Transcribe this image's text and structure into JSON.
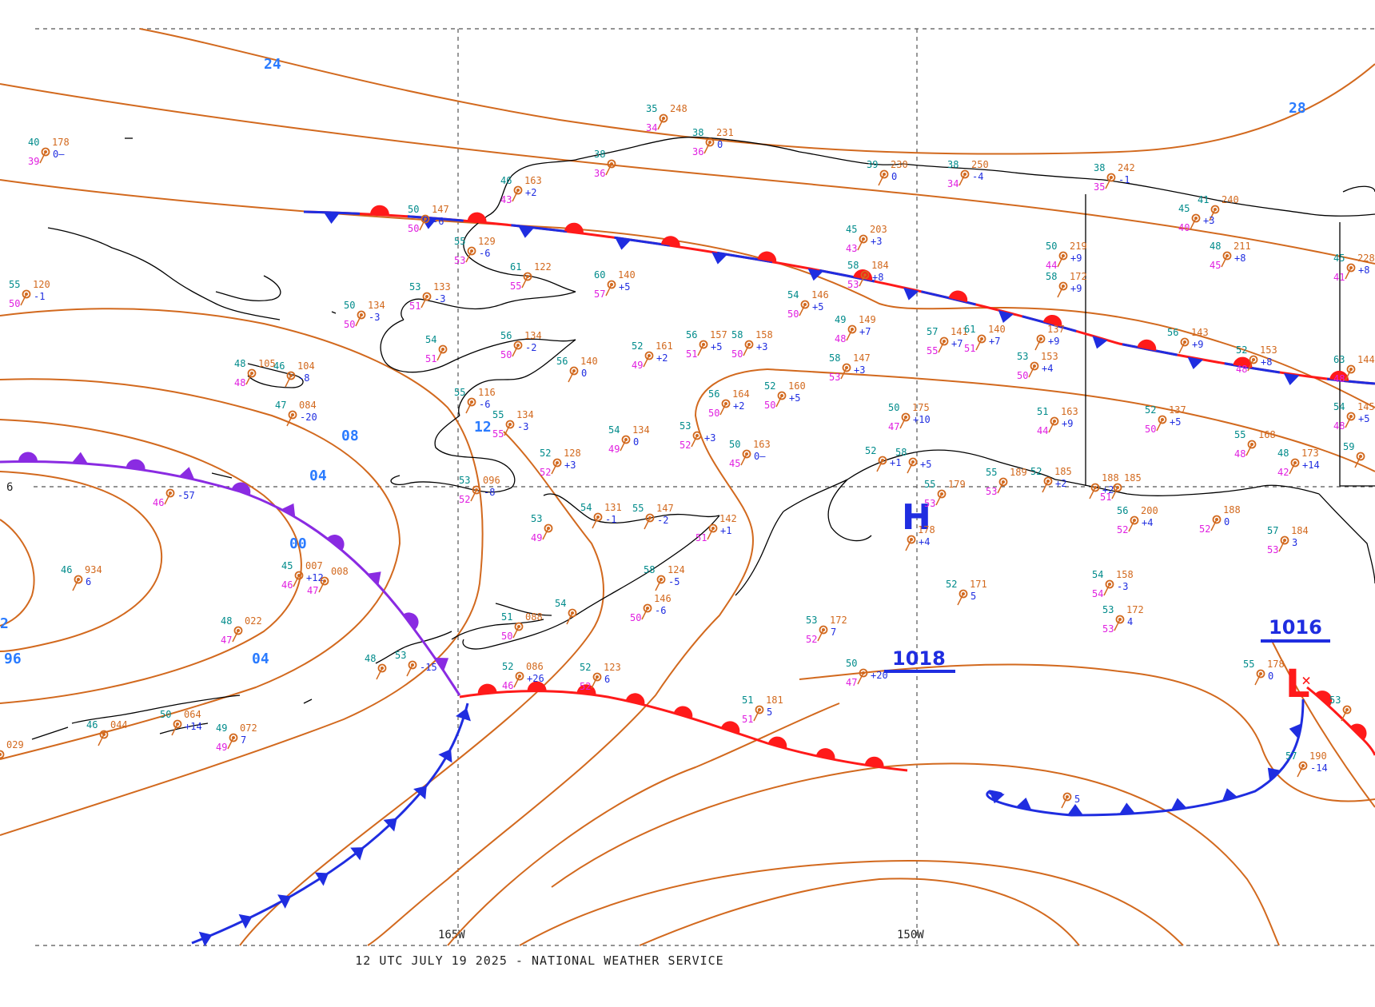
{
  "caption": "12 UTC JULY 19 2025 - NATIONAL WEATHER SERVICE",
  "grid": {
    "lat_label": "60N",
    "lon_labels": [
      "165W",
      "150W"
    ]
  },
  "colors": {
    "isobar": "#d2691e",
    "isobar_label": "#2a7bff",
    "cold_front": "#1f2de0",
    "warm_front": "#ff1a1a",
    "occluded_front": "#8a2be2",
    "high": "#1f2de0",
    "low": "#ff1a1a",
    "temp": "#008b8b",
    "dewpoint": "#e020e0",
    "pressure": "#d2691e",
    "tendency": "#1f2de0"
  },
  "isobar_labels": [
    "24",
    "28",
    "12",
    "08",
    "04",
    "00",
    "04",
    "96",
    "2"
  ],
  "pressure_centers": [
    {
      "type": "H",
      "value": "1018"
    },
    {
      "type": "L",
      "value": "1016"
    }
  ],
  "fronts": [
    {
      "type": "warm",
      "name": "northern warm front"
    },
    {
      "type": "cold",
      "name": "northern cold front"
    },
    {
      "type": "occluded",
      "name": "western occluded front"
    },
    {
      "type": "cold",
      "name": "southwest cold front"
    },
    {
      "type": "warm",
      "name": "southern warm front"
    },
    {
      "type": "cold",
      "name": "southeast cold front"
    },
    {
      "type": "warm",
      "name": "eastern warm front"
    }
  ],
  "stations": [
    {
      "t": "40",
      "p": "178",
      "d": "39",
      "tend": "0—"
    },
    {
      "t": "55",
      "p": "120",
      "d": "50",
      "tend": "-1"
    },
    {
      "t": "35",
      "p": "248",
      "d": "34",
      "tend": ""
    },
    {
      "t": "38",
      "p": "231",
      "d": "36",
      "tend": "0"
    },
    {
      "t": "38",
      "p": "",
      "d": "36",
      "tend": ""
    },
    {
      "t": "46",
      "p": "163",
      "d": "43",
      "tend": "+2"
    },
    {
      "t": "50",
      "p": "147",
      "d": "50",
      "tend": "-6"
    },
    {
      "t": "55",
      "p": "129",
      "d": "53",
      "tend": "-6"
    },
    {
      "t": "61",
      "p": "122",
      "d": "55",
      "tend": ""
    },
    {
      "t": "60",
      "p": "140",
      "d": "57",
      "tend": "+5"
    },
    {
      "t": "53",
      "p": "133",
      "d": "51",
      "tend": "-3"
    },
    {
      "t": "50",
      "p": "134",
      "d": "50",
      "tend": "-3"
    },
    {
      "t": "54",
      "p": "",
      "d": "51",
      "tend": ""
    },
    {
      "t": "56",
      "p": "134",
      "d": "50",
      "tend": "-2"
    },
    {
      "t": "56",
      "p": "140",
      "d": "",
      "tend": "0"
    },
    {
      "t": "52",
      "p": "161",
      "d": "49",
      "tend": "+2"
    },
    {
      "t": "56",
      "p": "157",
      "d": "51",
      "tend": "+5"
    },
    {
      "t": "58",
      "p": "158",
      "d": "50",
      "tend": "+3"
    },
    {
      "t": "48",
      "p": "105",
      "d": "48",
      "tend": ""
    },
    {
      "t": "46",
      "p": "104",
      "d": "",
      "tend": "-8"
    },
    {
      "t": "47",
      "p": "084",
      "d": "",
      "tend": "-20"
    },
    {
      "t": "55",
      "p": "116",
      "d": "",
      "tend": "-6"
    },
    {
      "t": "55",
      "p": "134",
      "d": "55",
      "tend": "-3"
    },
    {
      "t": "54",
      "p": "134",
      "d": "49",
      "tend": "0"
    },
    {
      "t": "53",
      "p": "",
      "d": "52",
      "tend": "+3"
    },
    {
      "t": "50",
      "p": "163",
      "d": "45",
      "tend": "0—"
    },
    {
      "t": "56",
      "p": "164",
      "d": "50",
      "tend": "+2"
    },
    {
      "t": "52",
      "p": "160",
      "d": "50",
      "tend": "+5"
    },
    {
      "t": "52",
      "p": "128",
      "d": "52",
      "tend": "+3"
    },
    {
      "t": "53",
      "p": "096",
      "d": "52",
      "tend": "-8"
    },
    {
      "t": "39",
      "p": "230",
      "d": "",
      "tend": "0"
    },
    {
      "t": "38",
      "p": "250",
      "d": "34",
      "tend": "-4"
    },
    {
      "t": "38",
      "p": "242",
      "d": "35",
      "tend": "-1"
    },
    {
      "t": "45",
      "p": "203",
      "d": "43",
      "tend": "+3"
    },
    {
      "t": "50",
      "p": "219",
      "d": "44",
      "tend": "+9"
    },
    {
      "t": "58",
      "p": "184",
      "d": "53",
      "tend": "+8"
    },
    {
      "t": "58",
      "p": "172",
      "d": "",
      "tend": "+9"
    },
    {
      "t": "54",
      "p": "146",
      "d": "50",
      "tend": "+5"
    },
    {
      "t": "49",
      "p": "149",
      "d": "48",
      "tend": "+7"
    },
    {
      "t": "57",
      "p": "141",
      "d": "55",
      "tend": "+7"
    },
    {
      "t": "61",
      "p": "140",
      "d": "51",
      "tend": "+7"
    },
    {
      "t": "",
      "p": "137",
      "d": "",
      "tend": "+9"
    },
    {
      "t": "58",
      "p": "147",
      "d": "53",
      "tend": "+3"
    },
    {
      "t": "53",
      "p": "153",
      "d": "50",
      "tend": "+4"
    },
    {
      "t": "56",
      "p": "143",
      "d": "",
      "tend": "+9"
    },
    {
      "t": "52",
      "p": "153",
      "d": "48",
      "tend": "+8"
    },
    {
      "t": "50",
      "p": "175",
      "d": "47",
      "tend": "+10"
    },
    {
      "t": "51",
      "p": "163",
      "d": "44",
      "tend": "+9"
    },
    {
      "t": "52",
      "p": "137",
      "d": "50",
      "tend": "+5"
    },
    {
      "t": "55",
      "p": "168",
      "d": "48",
      "tend": ""
    },
    {
      "t": "48",
      "p": "173",
      "d": "42",
      "tend": "+14"
    },
    {
      "t": "41",
      "p": "240",
      "d": "",
      "tend": ""
    },
    {
      "t": "45",
      "p": "",
      "d": "40",
      "tend": "+3"
    },
    {
      "t": "48",
      "p": "211",
      "d": "45",
      "tend": "+8"
    },
    {
      "t": "45",
      "p": "228",
      "d": "41",
      "tend": "+8"
    },
    {
      "t": "63",
      "p": "144",
      "d": "48",
      "tend": ""
    },
    {
      "t": "54",
      "p": "145",
      "d": "48",
      "tend": "+5"
    },
    {
      "t": "59",
      "p": "",
      "d": "",
      "tend": ""
    },
    {
      "t": "46",
      "p": "934",
      "d": "",
      "tend": "6"
    },
    {
      "t": "45",
      "p": "007",
      "d": "46",
      "tend": "+12"
    },
    {
      "t": "",
      "p": "008",
      "d": "47",
      "tend": ""
    },
    {
      "t": "48",
      "p": "022",
      "d": "47",
      "tend": ""
    },
    {
      "t": "46",
      "p": "044",
      "d": "",
      "tend": ""
    },
    {
      "t": "50",
      "p": "064",
      "d": "",
      "tend": "+14"
    },
    {
      "t": "49",
      "p": "072",
      "d": "49",
      "tend": "7"
    },
    {
      "t": "",
      "p": "029",
      "d": "",
      "tend": ""
    },
    {
      "t": "",
      "p": "",
      "d": "46",
      "tend": "-57"
    },
    {
      "t": "54",
      "p": "131",
      "d": "",
      "tend": "-1"
    },
    {
      "t": "55",
      "p": "147",
      "d": "",
      "tend": "-2"
    },
    {
      "t": "53",
      "p": "",
      "d": "49",
      "tend": ""
    },
    {
      "t": "",
      "p": "142",
      "d": "51",
      "tend": "+1"
    },
    {
      "t": "58",
      "p": "124",
      "d": "",
      "tend": "-5"
    },
    {
      "t": "",
      "p": "146",
      "d": "50",
      "tend": "-6"
    },
    {
      "t": "54",
      "p": "",
      "d": "",
      "tend": ""
    },
    {
      "t": "51",
      "p": "088",
      "d": "50",
      "tend": ""
    },
    {
      "t": "52",
      "p": "086",
      "d": "46",
      "tend": "+26"
    },
    {
      "t": "52",
      "p": "123",
      "d": "52",
      "tend": "6"
    },
    {
      "t": "48",
      "p": "",
      "d": "",
      "tend": ""
    },
    {
      "t": "53",
      "p": "",
      "d": "",
      "tend": "-15"
    },
    {
      "t": "53",
      "p": "172",
      "d": "52",
      "tend": "7"
    },
    {
      "t": "51",
      "p": "181",
      "d": "51",
      "tend": "5"
    },
    {
      "t": "50",
      "p": "",
      "d": "47",
      "tend": "+20"
    },
    {
      "t": "52",
      "p": "171",
      "d": "",
      "tend": "5"
    },
    {
      "t": "",
      "p": "178",
      "d": "",
      "tend": "+4"
    },
    {
      "t": "55",
      "p": "179",
      "d": "53",
      "tend": ""
    },
    {
      "t": "55",
      "p": "189",
      "d": "53",
      "tend": ""
    },
    {
      "t": "52",
      "p": "185",
      "d": "",
      "tend": "+2"
    },
    {
      "t": "",
      "p": "188",
      "d": "",
      "tend": "+2"
    },
    {
      "t": "",
      "p": "185",
      "d": "51",
      "tend": ""
    },
    {
      "t": "56",
      "p": "200",
      "d": "52",
      "tend": "+4"
    },
    {
      "t": "",
      "p": "188",
      "d": "52",
      "tend": "0"
    },
    {
      "t": "57",
      "p": "184",
      "d": "53",
      "tend": "3"
    },
    {
      "t": "54",
      "p": "158",
      "d": "54",
      "tend": "-3"
    },
    {
      "t": "53",
      "p": "172",
      "d": "53",
      "tend": "4"
    },
    {
      "t": "55",
      "p": "178",
      "d": "",
      "tend": "0"
    },
    {
      "t": "57",
      "p": "190",
      "d": "",
      "tend": "-14"
    },
    {
      "t": "53",
      "p": "",
      "d": "",
      "tend": ""
    },
    {
      "t": "",
      "p": "",
      "d": "",
      "tend": "5"
    },
    {
      "t": "52",
      "p": "",
      "d": "",
      "tend": "+1"
    },
    {
      "t": "58",
      "p": "",
      "d": "",
      "tend": "+5"
    }
  ]
}
